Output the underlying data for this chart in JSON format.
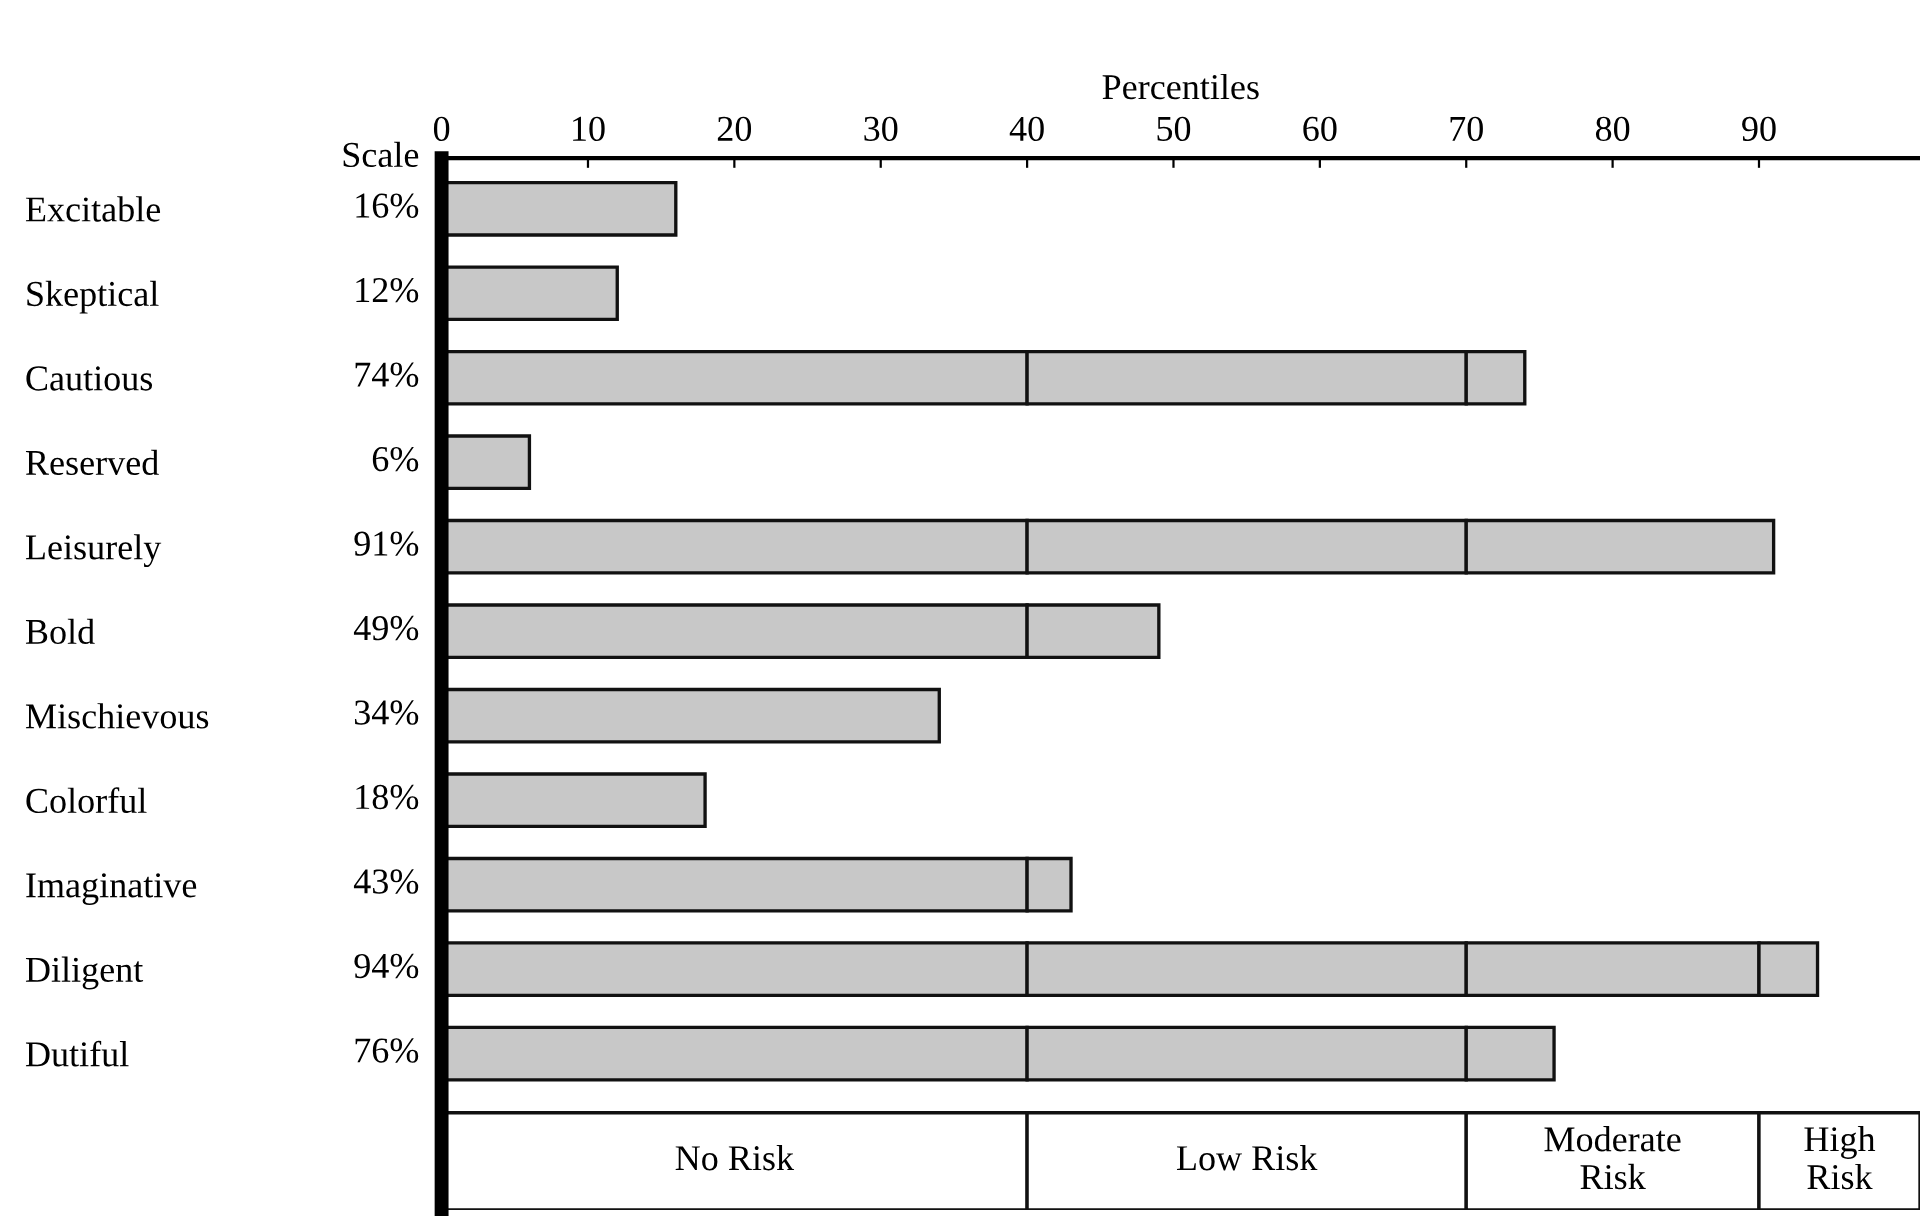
{
  "chart_data": {
    "type": "bar",
    "orientation": "horizontal",
    "stacked": true,
    "xlabel": "Percentiles",
    "categories": [
      "Excitable",
      "Skeptical",
      "Cautious",
      "Reserved",
      "Leisurely",
      "Bold",
      "Mischievous",
      "Colorful",
      "Imaginative",
      "Diligent",
      "Dutiful"
    ],
    "series": [
      {
        "color": "#c8c8c8",
        "values": [
          16,
          12,
          40,
          6,
          40,
          40,
          34,
          18,
          40,
          40,
          40
        ]
      },
      {
        "color": "#c8c8c8",
        "values": [
          null,
          null,
          30,
          null,
          30,
          9,
          null,
          null,
          3,
          30,
          30
        ]
      },
      {
        "color": "#c8c8c8",
        "values": [
          null,
          null,
          4,
          null,
          21,
          null,
          null,
          null,
          null,
          20,
          6
        ]
      },
      {
        "color": "#c8c8c8",
        "values": [
          null,
          null,
          null,
          null,
          null,
          null,
          null,
          null,
          null,
          4,
          null
        ]
      }
    ],
    "totals": [
      "16%",
      "12%",
      "74%",
      "6%",
      "91%",
      "49%",
      "34%",
      "18%",
      "43%",
      "94%",
      "76%"
    ],
    "xlim": [
      0,
      101
    ],
    "xticks": [
      0,
      10,
      20,
      30,
      40,
      50,
      60,
      70,
      80,
      90
    ],
    "bands": [
      {
        "axis": "x",
        "from": 0,
        "to": 40,
        "label": "No Risk",
        "color": "#ffffff"
      },
      {
        "axis": "x",
        "from": 40,
        "to": 70,
        "label": "Low Risk",
        "color": "#ffffff"
      },
      {
        "axis": "x",
        "from": 70,
        "to": 90,
        "label": "Moderate\nRisk",
        "color": "#ffffff"
      },
      {
        "axis": "x",
        "from": 90,
        "to": 101,
        "label": "High\nRisk",
        "color": "#ffffff"
      }
    ],
    "annotations": [
      "Scale"
    ],
    "grid": false,
    "legend": false
  }
}
